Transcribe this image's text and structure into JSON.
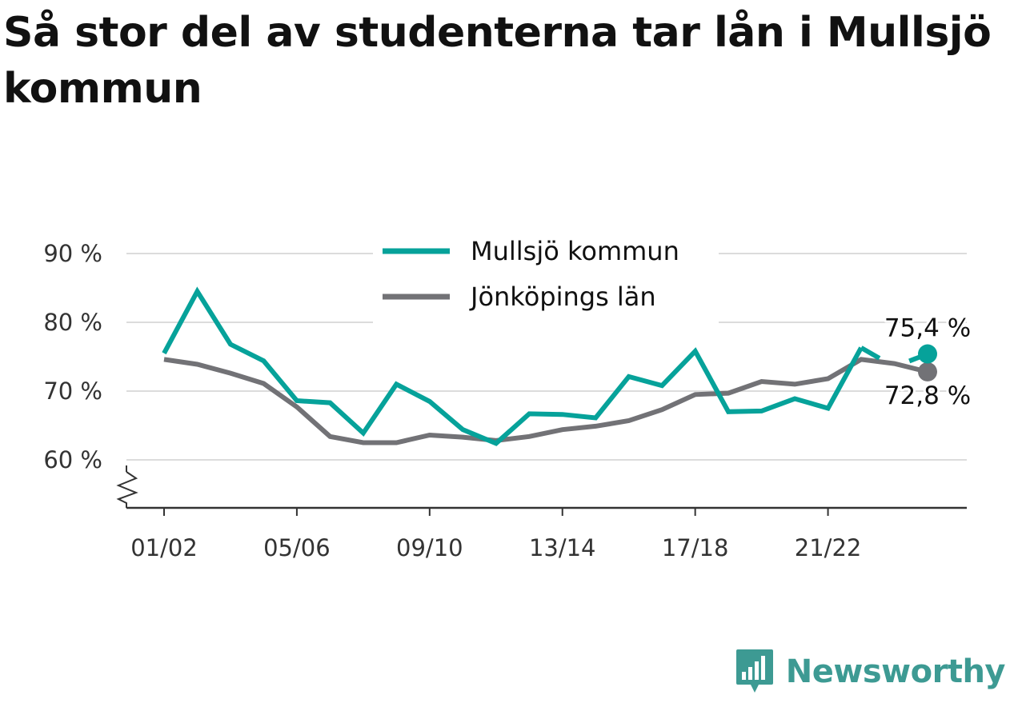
{
  "title": "Så stor del av studenterna tar lån i Mullsjö kommun",
  "brand": {
    "name": "Newsworthy",
    "icon": "newsworthy-logo-icon",
    "color": "#3d9a93"
  },
  "chart_data": {
    "type": "line",
    "title": "Så stor del av studenterna tar lån i Mullsjö kommun",
    "x": [
      "01/02",
      "02/03",
      "03/04",
      "04/05",
      "05/06",
      "06/07",
      "07/08",
      "08/09",
      "09/10",
      "10/11",
      "11/12",
      "12/13",
      "13/14",
      "14/15",
      "15/16",
      "16/17",
      "17/18",
      "18/19",
      "19/20",
      "20/21",
      "21/22",
      "22/23",
      "23/24",
      "24/25"
    ],
    "tick_labels": [
      "01/02",
      "05/06",
      "09/10",
      "13/14",
      "17/18",
      "21/22"
    ],
    "series": [
      {
        "name": "Mullsjö kommun",
        "color": "#06a29a",
        "values": [
          75.5,
          84.5,
          76.8,
          74.4,
          68.6,
          68.3,
          63.9,
          71.0,
          68.5,
          64.4,
          62.4,
          66.7,
          66.6,
          66.1,
          72.1,
          70.8,
          75.8,
          67.0,
          67.1,
          68.9,
          67.5,
          76.3,
          null,
          75.4
        ],
        "end_label": "75,4 %"
      },
      {
        "name": "Jönköpings län",
        "color": "#727276",
        "values": [
          74.6,
          73.9,
          72.6,
          71.1,
          67.7,
          63.4,
          62.5,
          62.5,
          63.6,
          63.3,
          62.8,
          63.4,
          64.4,
          64.9,
          65.7,
          67.3,
          69.5,
          69.7,
          71.4,
          71.0,
          71.8,
          74.6,
          74.0,
          72.8
        ],
        "end_label": "72,8 %"
      }
    ],
    "y_ticks": [
      60,
      70,
      80,
      90
    ],
    "y_tick_labels": [
      "60 %",
      "70 %",
      "80 %",
      "90 %"
    ],
    "ylim": [
      53,
      90
    ],
    "y_axis_break": true,
    "grid": "horizontal",
    "legend_position": "top-center",
    "xlabel": "",
    "ylabel": ""
  }
}
